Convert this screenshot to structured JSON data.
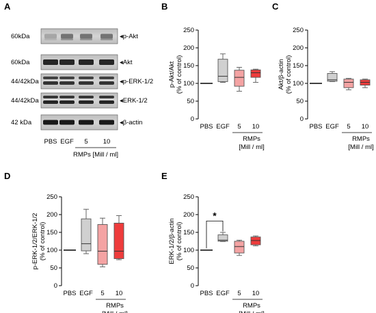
{
  "panel_a": {
    "letter": "A",
    "rows": [
      {
        "left": "60kDa",
        "right": "p-Akt"
      },
      {
        "left": "60kDa",
        "right": "Akt"
      },
      {
        "left": "44/42kDa",
        "right": "p-ERK-1/2"
      },
      {
        "left": "44/42kDa",
        "right": "ERK-1/2"
      },
      {
        "left": "42 kDa",
        "right": "β-actin"
      }
    ],
    "lanes": [
      "PBS",
      "EGF",
      "5",
      "10"
    ],
    "group_label": "RMPs [Mill / ml]"
  },
  "chart_data": [
    {
      "letter": "B",
      "type": "box",
      "ylabel": [
        "p-Akt/Akt",
        "(% of control)"
      ],
      "ylim": [
        0,
        250
      ],
      "yticks": [
        0,
        50,
        100,
        150,
        200,
        250
      ],
      "categories": [
        "PBS",
        "EGF",
        "5",
        "10"
      ],
      "group_label": [
        "RMPs",
        "[Mill / ml]"
      ],
      "boxes": [
        {
          "min": 100,
          "q1": 100,
          "median": 100,
          "q3": 100,
          "max": 100,
          "color": "#000000",
          "line_only": true
        },
        {
          "min": 103,
          "q1": 105,
          "median": 120,
          "q3": 168,
          "max": 183,
          "color": "#d0d0d0"
        },
        {
          "min": 78,
          "q1": 92,
          "median": 117,
          "q3": 137,
          "max": 145,
          "color": "#f4a3a3"
        },
        {
          "min": 103,
          "q1": 117,
          "median": 130,
          "q3": 138,
          "max": 140,
          "color": "#ee3c3c"
        }
      ]
    },
    {
      "letter": "C",
      "type": "box",
      "ylabel": [
        "Akt/β-actin",
        "(% of control)"
      ],
      "ylim": [
        0,
        250
      ],
      "yticks": [
        0,
        50,
        100,
        150,
        200,
        250
      ],
      "categories": [
        "PBS",
        "EGF",
        "5",
        "10"
      ],
      "group_label": [
        "RMPs",
        "[Mill / ml]"
      ],
      "boxes": [
        {
          "min": 100,
          "q1": 100,
          "median": 100,
          "q3": 100,
          "max": 100,
          "color": "#000000",
          "line_only": true
        },
        {
          "min": 105,
          "q1": 106,
          "median": 110,
          "q3": 128,
          "max": 133,
          "color": "#d0d0d0"
        },
        {
          "min": 82,
          "q1": 88,
          "median": 103,
          "q3": 112,
          "max": 114,
          "color": "#f4a3a3"
        },
        {
          "min": 88,
          "q1": 95,
          "median": 103,
          "q3": 110,
          "max": 112,
          "color": "#ee3c3c"
        }
      ]
    },
    {
      "letter": "D",
      "type": "box",
      "ylabel": [
        "p-ERK-1/2/ERK-1/2",
        "(% of control)"
      ],
      "ylim": [
        0,
        250
      ],
      "yticks": [
        0,
        50,
        100,
        150,
        200,
        250
      ],
      "categories": [
        "PBS",
        "EGF",
        "5",
        "10"
      ],
      "group_label": [
        "RMPs",
        "[Mill / ml]"
      ],
      "boxes": [
        {
          "min": 100,
          "q1": 100,
          "median": 100,
          "q3": 100,
          "max": 100,
          "color": "#000000",
          "line_only": true
        },
        {
          "min": 90,
          "q1": 98,
          "median": 118,
          "q3": 188,
          "max": 215,
          "color": "#d0d0d0"
        },
        {
          "min": 53,
          "q1": 60,
          "median": 97,
          "q3": 172,
          "max": 190,
          "color": "#f4a3a3"
        },
        {
          "min": 73,
          "q1": 76,
          "median": 97,
          "q3": 176,
          "max": 197,
          "color": "#ee3c3c"
        }
      ]
    },
    {
      "letter": "E",
      "type": "box",
      "ylabel": [
        "ERK-1/2/β-actin",
        "(% of control)"
      ],
      "ylim": [
        0,
        250
      ],
      "yticks": [
        0,
        50,
        100,
        150,
        200,
        250
      ],
      "categories": [
        "PBS",
        "EGF",
        "5",
        "10"
      ],
      "group_label": [
        "RMPs",
        "[Mill / ml]"
      ],
      "significance": {
        "from": 0,
        "to": 1,
        "label": "*",
        "y": 182
      },
      "boxes": [
        {
          "min": 100,
          "q1": 100,
          "median": 100,
          "q3": 100,
          "max": 100,
          "color": "#000000",
          "line_only": true
        },
        {
          "min": 124,
          "q1": 125,
          "median": 128,
          "q3": 143,
          "max": 150,
          "color": "#d0d0d0"
        },
        {
          "min": 85,
          "q1": 92,
          "median": 110,
          "q3": 125,
          "max": 128,
          "color": "#f4a3a3"
        },
        {
          "min": 112,
          "q1": 115,
          "median": 127,
          "q3": 137,
          "max": 140,
          "color": "#ee3c3c"
        }
      ]
    }
  ]
}
